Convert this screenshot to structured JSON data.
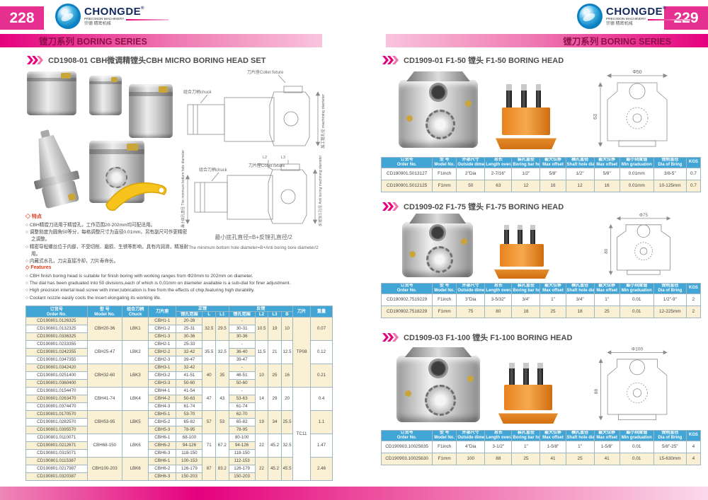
{
  "brand": {
    "name": "CHONGDE",
    "reg": "®",
    "sub": "PRECISION MACHINERY",
    "cn": "宗德 精密机械"
  },
  "bullets": {
    "heading": "◇",
    "item": "○"
  },
  "colors": {
    "accent": "#e5007d",
    "table_header_blue": "#41a5d5",
    "row_cream": "#faf0d3",
    "stand_orange": "#e8821e"
  },
  "left": {
    "page_number": "228",
    "series": "镗刀系列  BORING  SERIES",
    "title": "CD1908-01 CBH微调精镗头CBH MICRO BORING HEAD SET",
    "diagram": {
      "collet": "刀片座Collet fixture",
      "chuck": "组合刀柄chuck",
      "machining_dia": "加工镗孔径 machining diameter",
      "anti_dia": "反镗加工孔径 Anti boring machining diameter",
      "min_hole": "最小底孔直径 The minimum bottom hole diameter",
      "l2": "L2",
      "l3": "L3",
      "formula_cn": "最小底孔直径=B+反镗孔直径/2",
      "formula_en": "The minimum bottom hole diameter=B+Anti boring bore diameter/2"
    },
    "features_cn": {
      "heading": "特点",
      "items": [
        "CBH精镗刀适用于精镗孔，工作范围20-202mm均可配适用。",
        "调整刻度为圆角50等分，每格调整尺寸为直径0.01mm，另有副尺可作更精密之调整。",
        "精密导程螺丝位于内部，不受切削、磨损、生锈等影响，具有内润滑，精准耐用。",
        "内藏式水孔，刀尖直接冷却，刀片寿命长。"
      ]
    },
    "features_en": {
      "heading": "Features",
      "items": [
        "CBH finish boring head is suitable for finish boring with  working ranges from Φ20mm to 202mm on diameter.",
        "The dial has been graduated into 50 divisions,each of which is 0.01mm on diameter availabie is a sub-dial for finer adjustment.",
        "High precision intertal lead screw with inner,lubrication is free from the effects of chip,featuring high durability.",
        "Coolant nozzle easily cools the insert elongating its working life."
      ]
    },
    "table": {
      "headers": {
        "order_cn": "订货号",
        "order_en": "Order No.",
        "model_cn": "型 号",
        "model_en": "Model No.",
        "chuck_cn": "组合刀柄",
        "chuck_en": "Chuck",
        "seat": "刀片座",
        "fwd": "正镗",
        "rev": "反镗",
        "range": "镗孔范围",
        "l": "L",
        "l1": "L1",
        "l2": "L2",
        "l3": "L3",
        "b": "B",
        "insert": "刀片",
        "weight": "重量"
      },
      "insert_top": "TP08",
      "insert_bottom": "TC11",
      "groups": [
        {
          "model": "CBH20-36",
          "chuck": "LBK1",
          "L": "32.5",
          "L1": "29.5",
          "L2": "10.5",
          "L3": "19",
          "B": "10",
          "weight": "0.07",
          "rows": [
            [
              "CD190801.0126325",
              "CBH1-1",
              "20-26",
              "-"
            ],
            [
              "CD190801.0132325",
              "CBH1-2",
              "25-31",
              "30-31"
            ],
            [
              "CD190801.0336325",
              "CBH1-3",
              "30-36",
              "30-36"
            ]
          ]
        },
        {
          "model": "CBH25-47",
          "chuck": "LBK2",
          "L": "35.5",
          "L1": "32.5",
          "L2": "11.5",
          "L3": "21",
          "B": "12.5",
          "weight": "0.12",
          "rows": [
            [
              "CD190801.0233355",
              "CBH2-1",
              "25-33",
              "-"
            ],
            [
              "CD190801.0242355",
              "CBH2-2",
              "32-42",
              "36-40"
            ],
            [
              "CD190801.0347355",
              "CBH2-3",
              "39-47",
              "39-47"
            ]
          ]
        },
        {
          "model": "CBH32-60",
          "chuck": "LBK3",
          "L": "40",
          "L1": "35",
          "L2": "10",
          "L3": "25",
          "B": "16",
          "weight": "0.21",
          "rows": [
            [
              "CD190801.0342420",
              "CBH3-1",
              "32-42",
              "-"
            ],
            [
              "CD190801.0251400",
              "CBH3-2",
              "41-51",
              "46-51"
            ],
            [
              "CD190801.0360400",
              "CBH3-3",
              "50-60",
              "50-60"
            ]
          ]
        },
        {
          "model": "CBH41-74",
          "chuck": "LBK4",
          "L": "47",
          "L1": "43",
          "L2": "14",
          "L3": "29",
          "B": "20",
          "weight": "0.4",
          "rows": [
            [
              "CD190801.0154470",
              "CBH4-1",
              "41-54",
              "-"
            ],
            [
              "CD190801.0263470",
              "CBH4-2",
              "50-63",
              "53-63"
            ],
            [
              "CD190801.0374470",
              "CBH4-3",
              "61-74",
              "61-74"
            ]
          ]
        },
        {
          "model": "CBH53-95",
          "chuck": "LBK5",
          "L": "57",
          "L1": "53",
          "L2": "19",
          "L3": "34",
          "B": "25.5",
          "weight": "1.1",
          "rows": [
            [
              "CD190801.0170570",
              "CBH5-1",
              "53-70",
              "62-70"
            ],
            [
              "CD190801.0282570",
              "CBH5-2",
              "65-82",
              "65-82"
            ],
            [
              "CD190801.0395570",
              "CBH5-3",
              "78-95",
              "78-95"
            ]
          ]
        },
        {
          "model": "CBH68-150",
          "chuck": "LBK6",
          "L": "71",
          "L1": "67.2",
          "L2": "22",
          "L3": "45.2",
          "B": "32.5",
          "weight": "1.47",
          "rows": [
            [
              "CD190801.0110071",
              "CBH6-1",
              "68-100",
              "80-100"
            ],
            [
              "CD190801.0212671",
              "CBH6-2",
              "94-126",
              "94-126"
            ],
            [
              "CD190801.0315071",
              "CBH6-3",
              "118-150",
              "118-150"
            ]
          ]
        },
        {
          "model": "CBH100-203",
          "chuck": "LBK6",
          "L": "87",
          "L1": "83.2",
          "L2": "22",
          "L3": "45.2",
          "B": "45.5",
          "weight": "2.46",
          "rows": [
            [
              "CD190801.0115387",
              "CBH6-1",
              "100-153",
              "112-153"
            ],
            [
              "CD190801.0217987",
              "CBH6-2",
              "126-179",
              "126-179"
            ],
            [
              "CD190801.0320387",
              "CBH6-3",
              "150-203",
              "150-203"
            ]
          ]
        }
      ]
    }
  },
  "right": {
    "page_number": "229",
    "series": "镗刀系列  BORING  SERIES",
    "table_headers": [
      {
        "cn": "订货号",
        "en": "Order No."
      },
      {
        "cn": "型 号",
        "en": "Model No."
      },
      {
        "cn": "外部尺寸",
        "en": "Outside dimension"
      },
      {
        "cn": "总长",
        "en": "Length overall"
      },
      {
        "cn": "装孔直径",
        "en": "Boring bar hole size"
      },
      {
        "cn": "最大位移",
        "en": "Max offset"
      },
      {
        "cn": "横孔直径",
        "en": "Shaft hole diameter"
      },
      {
        "cn": "最大位移",
        "en": "Max offset"
      },
      {
        "cn": "最小刻度值",
        "en": "Min graduation"
      },
      {
        "cn": "镗削直径",
        "en": "Dia of Bring"
      },
      {
        "cn": "KGS",
        "en": ""
      }
    ],
    "sections": [
      {
        "title": "CD1909-01 F1-50 镗头 F1-50 BORING HEAD",
        "dim_top": "Φ50",
        "dim_left": "63",
        "rows": [
          [
            "CD190901.5013127",
            "F1inch",
            "2\"Dia",
            "2-7/16\"",
            "1/2\"",
            "5/8\"",
            "1/2\"",
            "5/8\"",
            "0.01mm",
            "3/8-5\"",
            "0.7"
          ],
          [
            "CD190901.5012125",
            "F1mm",
            "50",
            "63",
            "12",
            "16",
            "12",
            "16",
            "0.01mm",
            "10-125mm",
            "0.7"
          ]
        ]
      },
      {
        "title": "CD1909-02  F1-75 镗头 F1-75 BORING HEAD",
        "dim_top": "Φ75",
        "dim_left": "80",
        "rows": [
          [
            "CD190902.7519229",
            "F1inch",
            "3\"Dia",
            "3-5/32\"",
            "3/4\"",
            "1\"",
            "3/4\"",
            "1\"",
            "0.01",
            "1/2\"-9\"",
            "2"
          ],
          [
            "CD190902.7518229",
            "F1mm",
            "75",
            "80",
            "18",
            "25",
            "18",
            "25",
            "0.01",
            "12-225mm",
            "2"
          ]
        ]
      },
      {
        "title": "CD1909-03  F1-100 镗头 F1-100 BORING HEAD",
        "dim_top": "Φ100",
        "dim_left": "88",
        "rows": [
          [
            "CD190903.10025635",
            "F1inch",
            "4\"Dia",
            "3-1/2\"",
            "1\"",
            "1-5/8\"",
            "1\"",
            "1-5/8\"",
            "0.01",
            "5/8\"-25\"",
            "4"
          ],
          [
            "CD190903.10025630",
            "F1mm",
            "100",
            "88",
            "25",
            "41",
            "25",
            "41",
            "0.01",
            "15-630mm",
            "4"
          ]
        ]
      }
    ]
  }
}
